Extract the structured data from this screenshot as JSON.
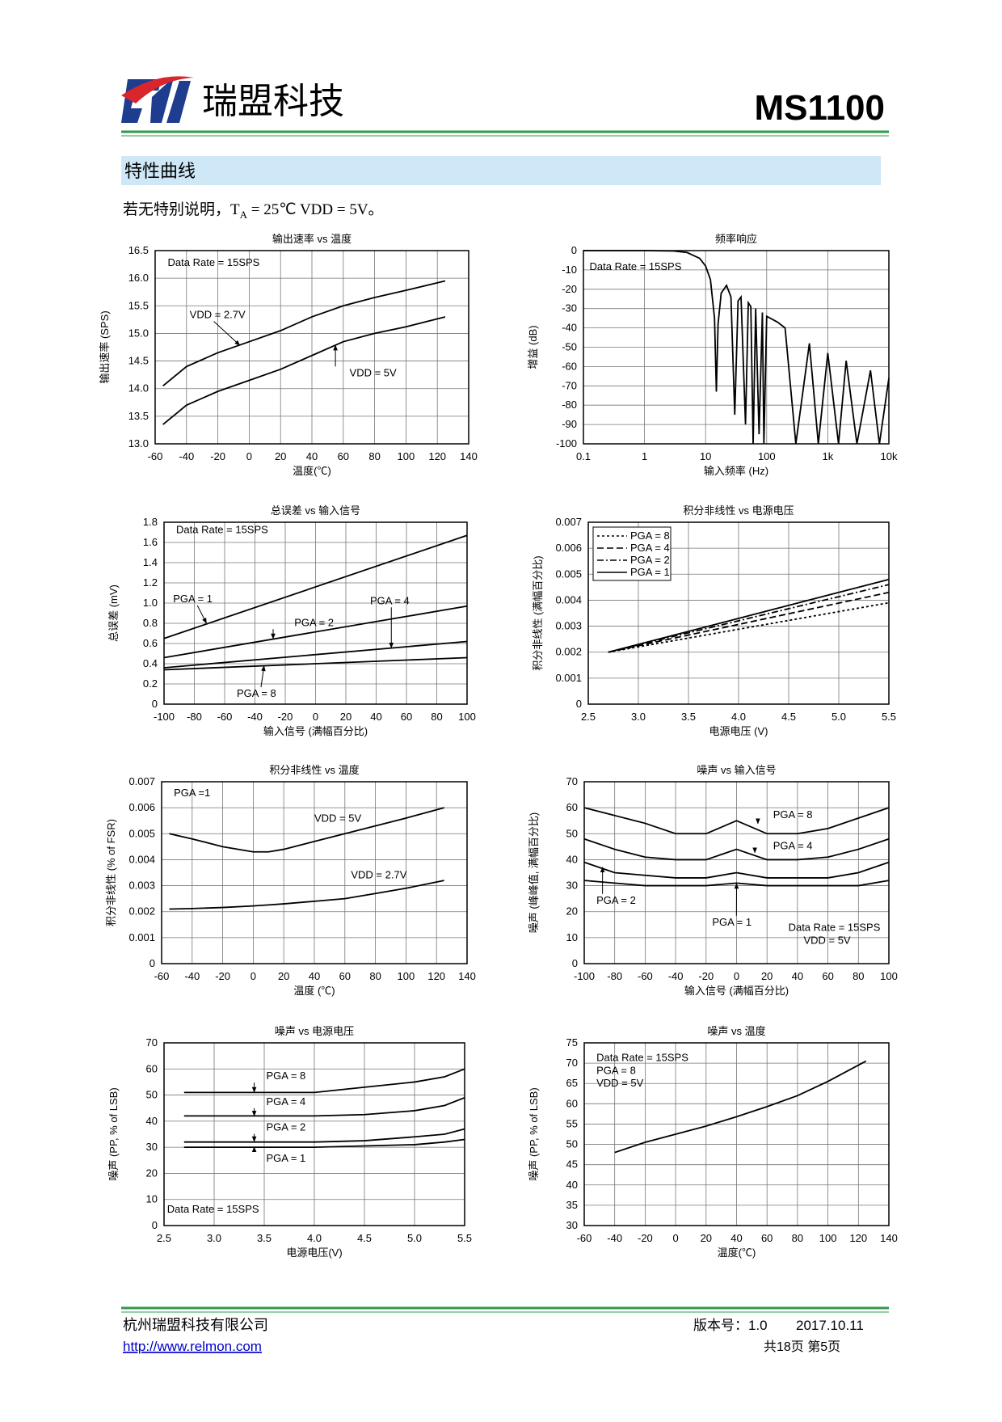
{
  "header": {
    "company": "瑞盟科技",
    "part": "MS1100"
  },
  "section": "特性曲线",
  "note": {
    "prefix": "若无特别说明，T",
    "sub": "A",
    "suffix": " = 25℃ VDD = 5V。"
  },
  "chart_data": [
    {
      "type": "line",
      "title": "输出速率 vs 温度",
      "x_label": "温度(℃)",
      "y_label": "输出速率 (SPS)",
      "annotations": [
        "Data Rate = 15SPS"
      ],
      "x": [
        -55,
        -40,
        -20,
        0,
        20,
        40,
        60,
        80,
        100,
        125
      ],
      "series": [
        {
          "name": "VDD = 2.7V",
          "color": "#000000",
          "values": [
            14.05,
            14.4,
            14.65,
            14.85,
            15.05,
            15.3,
            15.5,
            15.65,
            15.78,
            15.95
          ]
        },
        {
          "name": "VDD = 5V",
          "color": "#000000",
          "values": [
            13.35,
            13.7,
            13.95,
            14.15,
            14.35,
            14.6,
            14.85,
            15.0,
            15.12,
            15.3
          ]
        }
      ],
      "xlim": [
        -60,
        140
      ],
      "xticks": [
        -60,
        -40,
        -20,
        0,
        20,
        40,
        60,
        80,
        100,
        120,
        140
      ],
      "ylim": [
        13,
        16.5
      ],
      "yticks": [
        {
          "value": 13,
          "label": "13.0"
        },
        13.5,
        {
          "value": 14,
          "label": "14.0"
        },
        14.5,
        {
          "value": 15,
          "label": "15.0"
        },
        15.5,
        {
          "value": 16,
          "label": "16.0"
        },
        16.5
      ],
      "grid": true
    },
    {
      "type": "line",
      "title": "频率响应",
      "x_label": "输入频率 (Hz)",
      "y_label": "增益 (dB)",
      "annotations": [
        "Data Rate = 15SPS"
      ],
      "log_x": true,
      "x": [
        0.1,
        1,
        3,
        5,
        8,
        10,
        12,
        14,
        15,
        16,
        18,
        22,
        26,
        30,
        34,
        38,
        45,
        50,
        55,
        60,
        66,
        75,
        85,
        90,
        100,
        150,
        200,
        300,
        500,
        700,
        1000,
        1500,
        2000,
        3000,
        5000,
        7000,
        10000
      ],
      "series": [
        {
          "name": "增益",
          "color": "#000000",
          "values": [
            0,
            0,
            -0.2,
            -1,
            -4,
            -8,
            -15,
            -35,
            -73,
            -38,
            -22,
            -18,
            -24,
            -85,
            -26,
            -24,
            -90,
            -27,
            -29,
            -100,
            -30,
            -95,
            -32,
            -100,
            -34,
            -37,
            -40,
            -100,
            -48,
            -100,
            -53,
            -100,
            -57,
            -100,
            -62,
            -100,
            -66
          ]
        }
      ],
      "xlim": [
        0.1,
        10000
      ],
      "xticks": [
        0.1,
        1,
        10,
        100,
        {
          "value": 1000,
          "label": "1k"
        },
        {
          "value": 10000,
          "label": "10k"
        }
      ],
      "ylim": [
        -100,
        0
      ],
      "yticks": [
        0,
        -10,
        -20,
        -30,
        -40,
        -50,
        -60,
        -70,
        -80,
        -90,
        -100
      ],
      "grid": true
    },
    {
      "type": "line",
      "title": "总误差 vs 输入信号",
      "x_label": "输入信号 (满幅百分比)",
      "y_label": "总误差 (mV)",
      "annotations": [
        "Data Rate = 15SPS"
      ],
      "x": [
        -100,
        100
      ],
      "series": [
        {
          "name": "PGA = 1",
          "color": "#000000",
          "values": [
            0.65,
            1.67
          ]
        },
        {
          "name": "PGA = 2",
          "color": "#000000",
          "values": [
            0.46,
            0.97
          ]
        },
        {
          "name": "PGA = 4",
          "color": "#000000",
          "values": [
            0.36,
            0.62
          ]
        },
        {
          "name": "PGA = 8",
          "color": "#000000",
          "values": [
            0.34,
            0.46
          ]
        }
      ],
      "xlim": [
        -100,
        100
      ],
      "xticks": [
        -100,
        -80,
        -60,
        -40,
        -20,
        0,
        20,
        40,
        60,
        80,
        100
      ],
      "ylim": [
        0,
        1.8
      ],
      "yticks": [
        0,
        0.2,
        0.4,
        0.6,
        0.8,
        {
          "value": 1,
          "label": "1.0"
        },
        1.2,
        1.4,
        1.6,
        1.8
      ],
      "grid": true
    },
    {
      "type": "line",
      "title": "积分非线性 vs 电源电压",
      "x_label": "电源电压 (V)",
      "y_label": "积分非线性 (满幅百分比)",
      "legend": "upper left",
      "x": [
        2.7,
        5.5
      ],
      "series": [
        {
          "name": "PGA = 8",
          "color": "#000000",
          "dash": "3,3",
          "values": [
            0.002,
            0.0039
          ]
        },
        {
          "name": "PGA = 4",
          "color": "#000000",
          "dash": "8,4",
          "values": [
            0.002,
            0.0043
          ]
        },
        {
          "name": "PGA = 2",
          "color": "#000000",
          "dash": "8,3,2,3",
          "values": [
            0.002,
            0.0046
          ]
        },
        {
          "name": "PGA = 1",
          "color": "#000000",
          "values": [
            0.002,
            0.0048
          ]
        }
      ],
      "xlim": [
        2.5,
        5.5
      ],
      "xticks": [
        2.5,
        {
          "value": 3,
          "label": "3.0"
        },
        3.5,
        {
          "value": 4,
          "label": "4.0"
        },
        4.5,
        {
          "value": 5,
          "label": "5.0"
        },
        5.5
      ],
      "ylim": [
        0,
        0.007
      ],
      "yticks": [
        0,
        0.001,
        0.002,
        0.003,
        0.004,
        0.005,
        0.006,
        0.007
      ],
      "grid": true
    },
    {
      "type": "line",
      "title": "积分非线性 vs 温度",
      "x_label": "温度 (℃)",
      "y_label": "积分非线性 (% of FSR)",
      "annotations": [
        "PGA =1"
      ],
      "x": [
        -55,
        -40,
        -20,
        0,
        10,
        20,
        40,
        60,
        80,
        100,
        125
      ],
      "series": [
        {
          "name": "VDD = 5V",
          "color": "#000000",
          "values": [
            0.005,
            0.0048,
            0.0045,
            0.0043,
            0.0043,
            0.0044,
            0.0047,
            0.005,
            0.0053,
            0.0056,
            0.006
          ]
        },
        {
          "name": "VDD = 2.7V",
          "color": "#000000",
          "values": [
            0.0021,
            0.00212,
            0.00216,
            0.00222,
            0.00226,
            0.0023,
            0.0024,
            0.0025,
            0.0027,
            0.0029,
            0.0032
          ]
        }
      ],
      "xlim": [
        -60,
        140
      ],
      "xticks": [
        -60,
        -40,
        -20,
        0,
        20,
        40,
        60,
        80,
        100,
        120,
        140
      ],
      "ylim": [
        0,
        0.007
      ],
      "yticks": [
        0,
        0.001,
        0.002,
        0.003,
        0.004,
        0.005,
        0.006,
        0.007
      ],
      "grid": true
    },
    {
      "type": "line",
      "title": "噪声 vs 输入信号",
      "x_label": "输入信号 (满幅百分比)",
      "y_label": "噪声 (峰峰值, 满幅百分比)",
      "annotations": [
        "Data Rate = 15SPS",
        "VDD = 5V"
      ],
      "x": [
        -100,
        -80,
        -60,
        -40,
        -20,
        0,
        20,
        40,
        60,
        80,
        100
      ],
      "series": [
        {
          "name": "PGA = 8",
          "color": "#000000",
          "values": [
            60,
            57,
            54,
            50,
            50,
            55,
            50,
            50,
            52,
            56,
            60
          ]
        },
        {
          "name": "PGA = 4",
          "color": "#000000",
          "values": [
            48,
            44,
            41,
            40,
            40,
            44,
            40,
            40,
            41,
            44,
            48
          ]
        },
        {
          "name": "PGA = 2",
          "color": "#000000",
          "values": [
            39,
            35,
            34,
            33,
            33,
            35,
            33,
            33,
            33,
            35,
            39
          ]
        },
        {
          "name": "PGA = 1",
          "color": "#000000",
          "values": [
            32,
            31,
            30,
            30,
            30,
            31,
            30,
            30,
            30,
            30,
            32
          ]
        }
      ],
      "xlim": [
        -100,
        100
      ],
      "xticks": [
        -100,
        -80,
        -60,
        -40,
        -20,
        0,
        20,
        40,
        60,
        80,
        100
      ],
      "ylim": [
        0,
        70
      ],
      "yticks": [
        0,
        10,
        20,
        30,
        40,
        50,
        60,
        70
      ],
      "grid": true
    },
    {
      "type": "line",
      "title": "噪声 vs 电源电压",
      "x_label": "电源电压(V)",
      "y_label": "噪声 (PP, % of LSB)",
      "annotations": [
        "Data Rate = 15SPS"
      ],
      "x": [
        2.7,
        3,
        3.5,
        4,
        4.5,
        5,
        5.3,
        5.5
      ],
      "series": [
        {
          "name": "PGA = 8",
          "color": "#000000",
          "values": [
            51,
            51,
            51,
            51,
            53,
            55,
            57,
            60
          ]
        },
        {
          "name": "PGA = 4",
          "color": "#000000",
          "values": [
            42,
            42,
            42,
            42,
            42.5,
            44,
            46,
            49
          ]
        },
        {
          "name": "PGA = 2",
          "color": "#000000",
          "values": [
            32,
            32,
            32,
            32,
            32.5,
            34,
            35,
            37
          ]
        },
        {
          "name": "PGA = 1",
          "color": "#000000",
          "values": [
            30,
            30,
            30,
            30,
            30.5,
            31,
            32,
            33
          ]
        }
      ],
      "xlim": [
        2.5,
        5.5
      ],
      "xticks": [
        2.5,
        {
          "value": 3,
          "label": "3.0"
        },
        3.5,
        {
          "value": 4,
          "label": "4.0"
        },
        4.5,
        {
          "value": 5,
          "label": "5.0"
        },
        5.5
      ],
      "ylim": [
        0,
        70
      ],
      "yticks": [
        0,
        10,
        20,
        30,
        40,
        50,
        60,
        70
      ],
      "grid": true
    },
    {
      "type": "line",
      "title": "噪声 vs 温度",
      "x_label": "温度(℃)",
      "y_label": "噪声 (PP, % of LSB)",
      "annotations": [
        "Data Rate = 15SPS",
        "PGA = 8",
        "VDD = 5V"
      ],
      "x": [
        -40,
        -20,
        0,
        20,
        40,
        60,
        80,
        100,
        125
      ],
      "series": [
        {
          "name": "噪声",
          "color": "#000000",
          "values": [
            48,
            50.5,
            52.5,
            54.5,
            56.8,
            59.3,
            62,
            65.5,
            70.5
          ]
        }
      ],
      "xlim": [
        -60,
        140
      ],
      "xticks": [
        -60,
        -40,
        -20,
        0,
        20,
        40,
        60,
        80,
        100,
        120,
        140
      ],
      "ylim": [
        30,
        75
      ],
      "yticks": [
        30,
        35,
        40,
        45,
        50,
        55,
        60,
        65,
        70,
        75
      ],
      "grid": true
    }
  ],
  "footer": {
    "company": "杭州瑞盟科技有限公司",
    "url": "http://www.relmon.com",
    "version": "版本号：1.0",
    "date": "2017.10.11",
    "pages": "共18页 第5页"
  }
}
